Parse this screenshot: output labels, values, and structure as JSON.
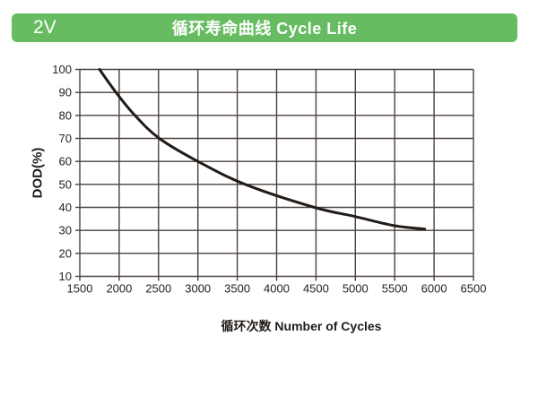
{
  "header": {
    "voltage_badge": "2V",
    "title": "循环寿命曲线 Cycle Life",
    "bg_color": "#67bc62",
    "text_color": "#ffffff"
  },
  "chart_data": {
    "type": "line",
    "title": "循环寿命曲线 Cycle Life",
    "xlabel": "循环次数 Number of Cycles",
    "ylabel": "DOD(%)",
    "xlim": [
      1500,
      6500
    ],
    "ylim": [
      10,
      100
    ],
    "x_ticks": [
      1500,
      2000,
      2500,
      3000,
      3500,
      4000,
      4500,
      5000,
      5500,
      6000,
      6500
    ],
    "y_ticks": [
      100,
      90,
      80,
      70,
      60,
      50,
      40,
      30,
      20,
      10
    ],
    "grid": true,
    "legend": "none",
    "series": [
      {
        "name": "cycle-life-curve",
        "points": [
          [
            1750,
            100
          ],
          [
            1960,
            90
          ],
          [
            2200,
            80
          ],
          [
            2510,
            70
          ],
          [
            3000,
            60
          ],
          [
            3600,
            50
          ],
          [
            4480,
            40
          ],
          [
            5000,
            36
          ],
          [
            5500,
            32
          ],
          [
            5880,
            30.6
          ]
        ]
      }
    ],
    "line_color": "#221c19",
    "grid_color": "#4a413c",
    "tick_label_color": "#262220"
  }
}
